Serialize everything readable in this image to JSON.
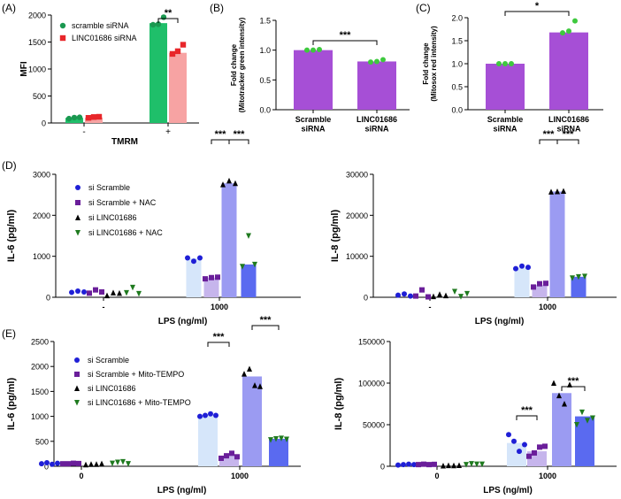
{
  "chart_data": [
    {
      "panel": "(A)",
      "type": "bar",
      "ylabel": "MFI",
      "xlabel": "TMRM",
      "ylim": [
        0,
        2000
      ],
      "yticks": [
        0,
        500,
        1000,
        1500,
        2000
      ],
      "categories": [
        "-",
        "+"
      ],
      "series": [
        {
          "name": "scramble siRNA",
          "color": "#1a9850",
          "fill": "#1fbf6a",
          "marker": "circle",
          "values": [
            95,
            1850
          ],
          "points": [
            [
              80,
              100,
              105
            ],
            [
              1820,
              1830,
              1960
            ]
          ]
        },
        {
          "name": "LINC01686 siRNA",
          "color": "#e8262a",
          "fill": "#f7a3a3",
          "marker": "square",
          "values": [
            100,
            1300
          ],
          "points": [
            [
              95,
              110,
              115
            ],
            [
              1280,
              1330,
              1450
            ]
          ]
        }
      ],
      "significance": [
        {
          "label": "**"
        }
      ]
    },
    {
      "panel": "(B)",
      "type": "bar",
      "ylabel": "Fold change\n(Mitotracker green intensity)",
      "ylim": [
        0,
        1.5
      ],
      "yticks": [
        "0.0",
        "0.5",
        "1.0",
        "1.5"
      ],
      "categories": [
        "Scramble\nsiRNA",
        "LINC01686\nsiRNA"
      ],
      "bar_color": "#a64fd6",
      "values": [
        1.0,
        0.81
      ],
      "points": [
        [
          1.0,
          1.0,
          1.01
        ],
        [
          0.8,
          0.81,
          0.84
        ]
      ],
      "significance": [
        {
          "label": "***"
        }
      ]
    },
    {
      "panel": "(C)",
      "type": "bar",
      "ylabel": "Fold change\n(Mitosox red intensity)",
      "ylim": [
        0,
        2.0
      ],
      "yticks": [
        "0.0",
        "0.5",
        "1.0",
        "1.5",
        "2.0"
      ],
      "categories": [
        "Scramble\nsiRNA",
        "LINC01686\nsiRNA"
      ],
      "bar_color": "#a64fd6",
      "values": [
        1.0,
        1.68
      ],
      "points": [
        [
          1.0,
          1.0,
          1.0
        ],
        [
          1.67,
          1.71,
          1.93
        ]
      ],
      "significance": [
        {
          "label": "*"
        }
      ]
    },
    {
      "panel": "(D)",
      "type": "bar",
      "ylabel": "IL-6 (pg/ml)",
      "xlabel": "LPS (ng/ml)",
      "ylim": [
        0,
        3000
      ],
      "yticks": [
        0,
        1000,
        2000,
        3000
      ],
      "categories": [
        "-",
        "1000"
      ],
      "series": [
        {
          "name": "si Scramble",
          "values": [
            130,
            950
          ],
          "points": [
            [
              120,
              150,
              130
            ],
            [
              960,
              880,
              960
            ]
          ]
        },
        {
          "name": "si Scramble + NAC",
          "values": [
            140,
            480
          ],
          "points": [
            [
              100,
              180,
              130
            ],
            [
              450,
              480,
              490
            ]
          ]
        },
        {
          "name": "si LINC01686",
          "values": [
            90,
            2780
          ],
          "points": [
            [
              40,
              110,
              100
            ],
            [
              2750,
              2840,
              2780
            ]
          ]
        },
        {
          "name": "si LINC01686 + NAC",
          "values": [
            120,
            800
          ],
          "points": [
            [
              110,
              240,
              90
            ],
            [
              750,
              1500,
              800
            ]
          ]
        }
      ],
      "significance": [
        {
          "label": "***"
        },
        {
          "label": "***"
        }
      ]
    },
    {
      "panel": "",
      "type": "bar",
      "ylabel": "IL-8 (pg/ml)",
      "xlabel": "LPS (ng/ml)",
      "ylim": [
        0,
        30000
      ],
      "yticks": [
        0,
        10000,
        20000,
        30000
      ],
      "categories": [
        "-",
        "1000"
      ],
      "series": [
        {
          "name": "si Scramble",
          "values": [
            500,
            7200
          ],
          "points": [
            [
              500,
              800,
              300
            ],
            [
              7000,
              7600,
              7300
            ]
          ]
        },
        {
          "name": "si Scramble + NAC",
          "values": [
            700,
            3000
          ],
          "points": [
            [
              300,
              1800,
              100
            ],
            [
              2500,
              3300,
              3400
            ]
          ]
        },
        {
          "name": "si LINC01686",
          "values": [
            400,
            25800
          ],
          "points": [
            [
              200,
              700,
              400
            ],
            [
              25700,
              25800,
              25900
            ]
          ]
        },
        {
          "name": "si LINC01686 + NAC",
          "values": [
            400,
            5000
          ],
          "points": [
            [
              1400,
              200,
              900
            ],
            [
              4700,
              5000,
              5100
            ]
          ]
        }
      ],
      "significance": [
        {
          "label": "***"
        },
        {
          "label": "***"
        }
      ]
    },
    {
      "panel": "(E)",
      "type": "bar",
      "ylabel": "IL-6 (pg/ml)",
      "xlabel": "LPS (ng/ml)",
      "ylim": [
        0,
        2500
      ],
      "yticks": [
        0,
        500,
        1000,
        1500,
        2000,
        2500
      ],
      "categories": [
        "0",
        "1000"
      ],
      "series": [
        {
          "name": "si Scramble",
          "values": [
            55,
            1020
          ],
          "points": [
            [
              50,
              70,
              40,
              60
            ],
            [
              1000,
              1020,
              1050,
              1020
            ]
          ]
        },
        {
          "name": "si Scramble + Mito-TEMPO",
          "values": [
            55,
            210
          ],
          "points": [
            [
              50,
              50,
              60,
              55
            ],
            [
              160,
              210,
              260,
              190
            ]
          ]
        },
        {
          "name": "si LINC01686",
          "values": [
            40,
            1800
          ],
          "points": [
            [
              30,
              40,
              40,
              50
            ],
            [
              1850,
              1950,
              1620,
              1600
            ]
          ]
        },
        {
          "name": "si LINC01686 + Mito-TEMPO",
          "values": [
            70,
            550
          ],
          "points": [
            [
              60,
              80,
              90,
              50
            ],
            [
              530,
              550,
              560,
              540
            ]
          ]
        }
      ],
      "significance": [
        {
          "label": "***"
        },
        {
          "label": "***"
        }
      ]
    },
    {
      "panel": "",
      "type": "bar",
      "ylabel": "IL-8 (pg/ml)",
      "xlabel": "LPS (ng/ml)",
      "ylim": [
        0,
        150000
      ],
      "yticks": [
        0,
        50000,
        100000,
        150000
      ],
      "categories": [
        "0",
        "1000"
      ],
      "series": [
        {
          "name": "si Scramble",
          "values": [
            2000,
            28000
          ],
          "points": [
            [
              1500,
              2000,
              2500,
              2000
            ],
            [
              38000,
              30000,
              18000,
              26000
            ]
          ]
        },
        {
          "name": "si Scramble + Mito-TEMPO",
          "values": [
            2200,
            18000
          ],
          "points": [
            [
              2000,
              2500,
              2000,
              2300
            ],
            [
              12000,
              16000,
              23000,
              24000
            ]
          ]
        },
        {
          "name": "si LINC01686",
          "values": [
            800,
            88000
          ],
          "points": [
            [
              500,
              900,
              800,
              1000
            ],
            [
              100000,
              85000,
              75000,
              98000
            ]
          ]
        },
        {
          "name": "si LINC01686 + Mito-TEMPO",
          "values": [
            2500,
            60000
          ],
          "points": [
            [
              2000,
              3000,
              2500,
              2500
            ],
            [
              50000,
              65000,
              55000,
              58000
            ]
          ]
        }
      ],
      "significance": [
        {
          "label": "***"
        },
        {
          "label": "***"
        }
      ]
    }
  ]
}
